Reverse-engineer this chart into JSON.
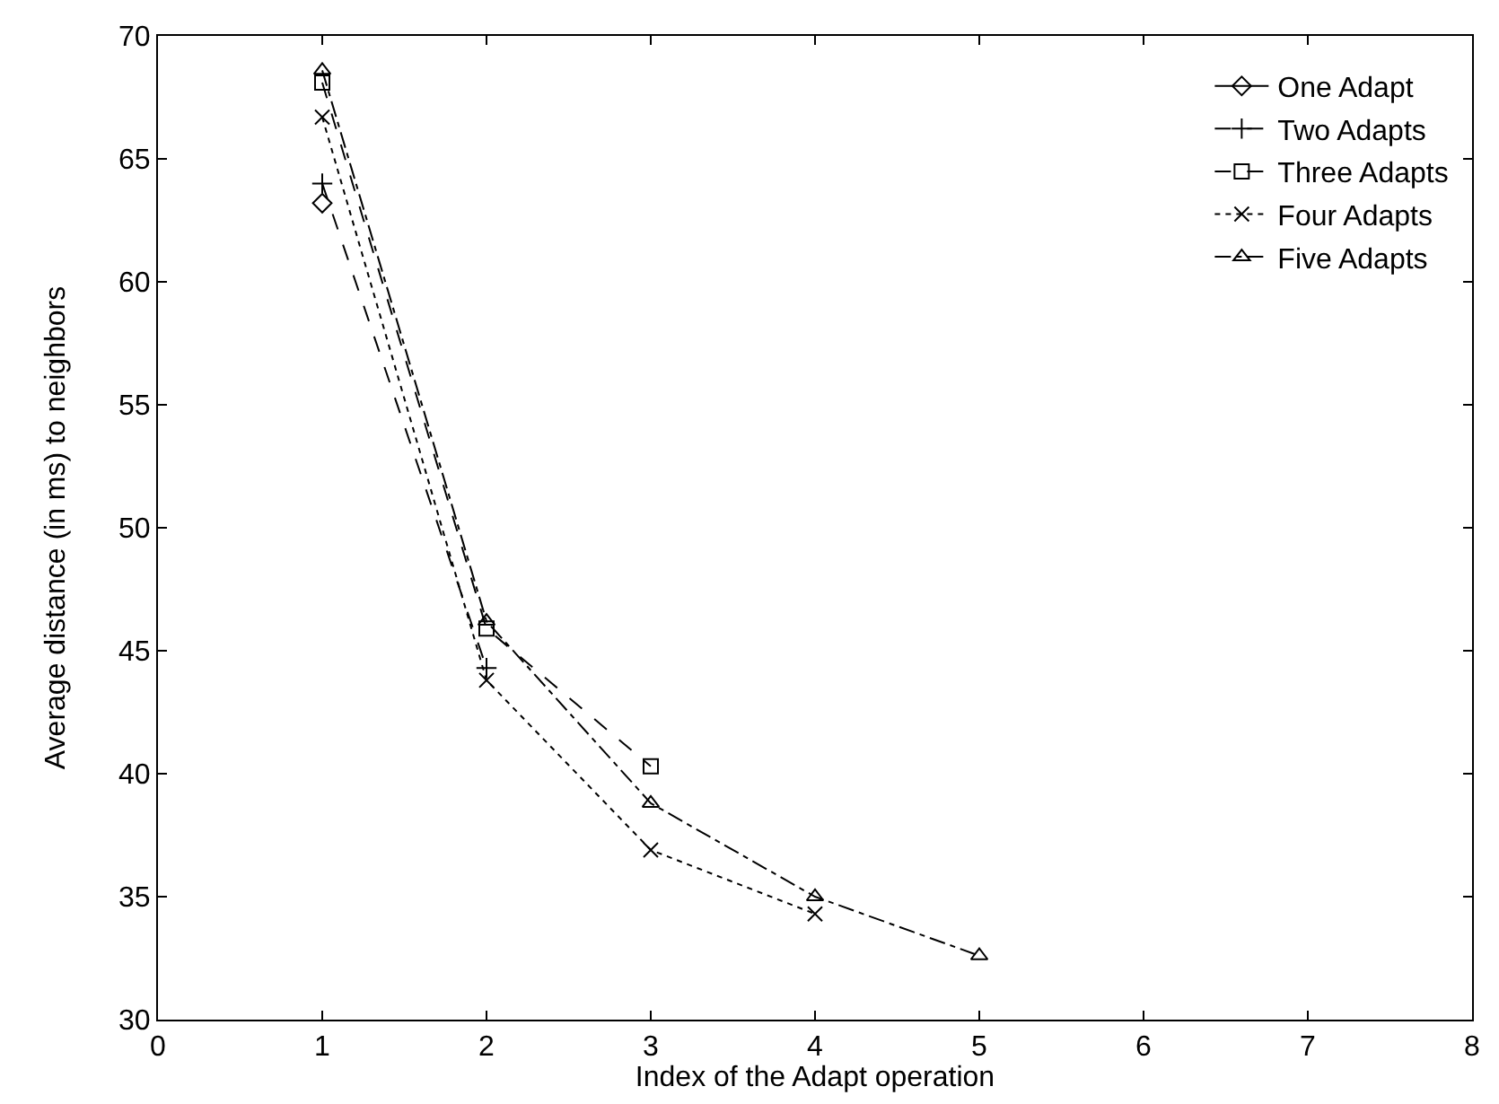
{
  "chart_data": {
    "type": "line",
    "xlabel": "Index of the Adapt operation",
    "ylabel": "Average distance (in ms) to neighbors",
    "xlim": [
      0,
      8
    ],
    "xticks": [
      0,
      1,
      2,
      3,
      4,
      5,
      6,
      7,
      8
    ],
    "ylim": [
      30,
      70
    ],
    "yticks": [
      30,
      35,
      40,
      45,
      50,
      55,
      60,
      65,
      70
    ],
    "legend": "top right",
    "series": [
      {
        "name": "One Adapt",
        "color": "#000000",
        "x": [
          1
        ],
        "values": [
          63.2
        ],
        "marker": "diamond",
        "line_style": "solid"
      },
      {
        "name": "Two Adapts",
        "color": "#000000",
        "x": [
          1,
          2
        ],
        "values": [
          64.0,
          44.3
        ],
        "marker": "cross",
        "line_style": "dashed"
      },
      {
        "name": "Three Adapts",
        "color": "#000000",
        "x": [
          1,
          2,
          3
        ],
        "values": [
          68.1,
          45.9,
          40.3
        ],
        "marker": "square",
        "line_style": "dashed"
      },
      {
        "name": "Four Adapts",
        "color": "#000000",
        "x": [
          1,
          2,
          3,
          4
        ],
        "values": [
          66.7,
          43.8,
          36.9,
          34.3
        ],
        "marker": "x",
        "line_style": "dotted"
      },
      {
        "name": "Five Adapts",
        "color": "#000000",
        "x": [
          1,
          2,
          3,
          4,
          5
        ],
        "values": [
          68.6,
          46.2,
          38.8,
          35.0,
          32.6
        ],
        "marker": "triangle",
        "line_style": "dashdot"
      }
    ]
  }
}
